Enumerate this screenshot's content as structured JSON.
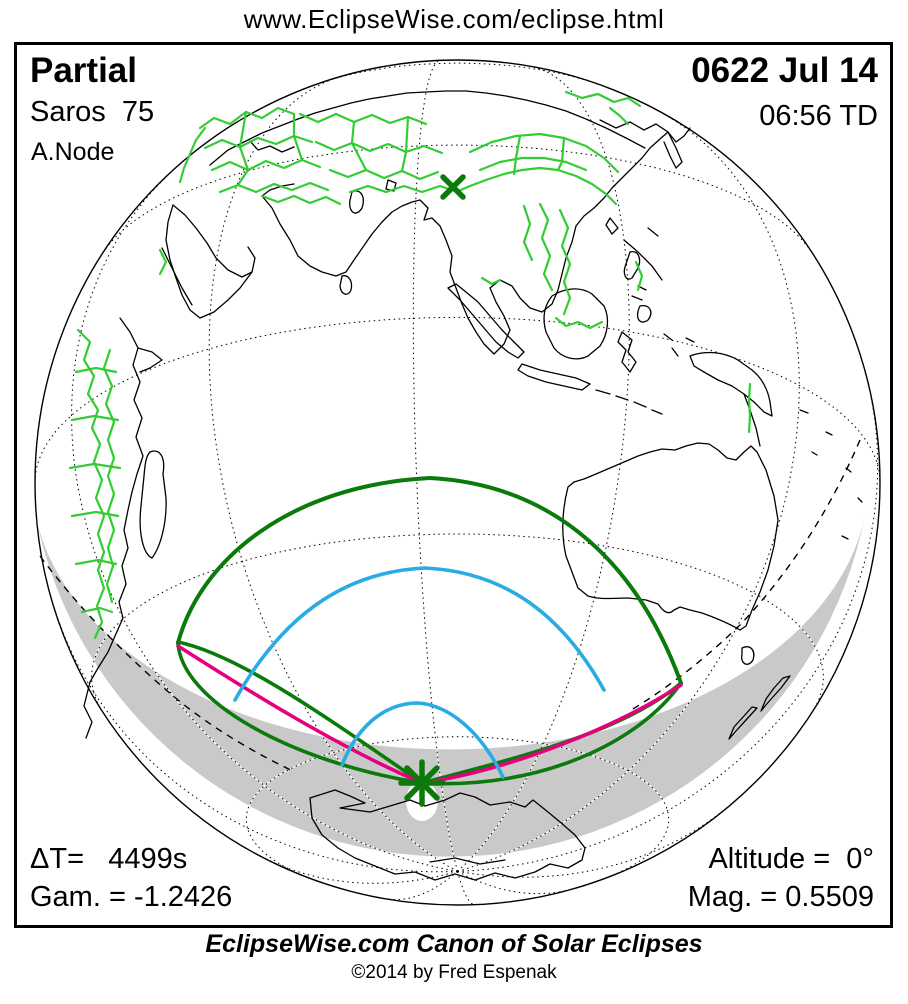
{
  "header": {
    "url": "www.EclipseWise.com/eclipse.html"
  },
  "map": {
    "eclipse_type": "Partial",
    "saros": "Saros  75",
    "node": "A.Node",
    "date": "0622 Jul 14",
    "time": "06:56 TD",
    "delta_t": "ΔT=   4499s",
    "gamma": "Gam. = -1.2426",
    "altitude": "Altitude =  0°",
    "magnitude": "Mag. = 0.5509",
    "marks": {
      "sub_solar_point": "X",
      "greatest_eclipse": "asterisk"
    }
  },
  "footer": {
    "title": "EclipseWise.com Canon of Solar Eclipses",
    "copyright": "©2014 by Fred Espenak"
  },
  "colors": {
    "border_green": "#33cc33",
    "eclipse_green": "#0a7a0a",
    "magenta": "#e6007e",
    "blue": "#2aabe2",
    "night_gray": "#c9c9c9",
    "land_outline": "#000000"
  }
}
